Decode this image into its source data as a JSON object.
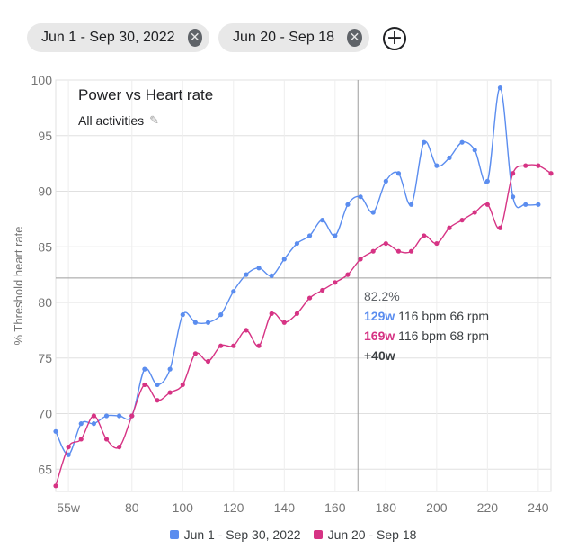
{
  "filters": {
    "chips": [
      {
        "label": "Jun 1 - Sep 30, 2022"
      },
      {
        "label": "Jun 20 - Sep 18"
      }
    ],
    "close_glyph": "✕",
    "add_glyph": "+"
  },
  "chart_header": {
    "title": "Power vs Heart rate",
    "subtitle": "All activities",
    "edit_icon": "pencil-icon"
  },
  "tooltip": {
    "percent": "82.2%",
    "rows": [
      {
        "watts": "129w",
        "details": "116 bpm  66 rpm",
        "color": "#5b8def"
      },
      {
        "watts": "169w",
        "details": "116 bpm  68 rpm",
        "color": "#d63384"
      }
    ],
    "difference": "+40w"
  },
  "chart_data": {
    "type": "line",
    "ylabel": "% Threshold heart rate",
    "xlabel": "",
    "xlim": [
      50,
      245
    ],
    "ylim": [
      63,
      100
    ],
    "x_ticks": [
      {
        "value": 55,
        "label": "55w"
      },
      {
        "value": 80,
        "label": "80"
      },
      {
        "value": 100,
        "label": "100"
      },
      {
        "value": 120,
        "label": "120"
      },
      {
        "value": 140,
        "label": "140"
      },
      {
        "value": 160,
        "label": "160"
      },
      {
        "value": 180,
        "label": "180"
      },
      {
        "value": 200,
        "label": "200"
      },
      {
        "value": 220,
        "label": "220"
      },
      {
        "value": 240,
        "label": "240"
      }
    ],
    "y_ticks": [
      65,
      70,
      75,
      80,
      85,
      90,
      95,
      100
    ],
    "grid": true,
    "legend_position": "bottom",
    "crosshair": {
      "x": 169,
      "y": 82.2
    },
    "series": [
      {
        "name": "Jun 1 - Sep 30, 2022",
        "color": "#5b8def",
        "x": [
          50,
          55,
          60,
          65,
          70,
          75,
          80,
          85,
          90,
          95,
          100,
          105,
          110,
          115,
          120,
          125,
          130,
          135,
          140,
          145,
          150,
          155,
          160,
          165,
          170,
          175,
          180,
          185,
          190,
          195,
          200,
          205,
          210,
          215,
          220,
          225,
          230,
          235,
          240
        ],
        "y": [
          68.4,
          66.3,
          69.1,
          69.1,
          69.8,
          69.8,
          69.8,
          74.0,
          72.6,
          74.0,
          78.9,
          78.2,
          78.2,
          78.9,
          81.0,
          82.5,
          83.1,
          82.4,
          83.9,
          85.3,
          86.0,
          87.4,
          86.0,
          88.8,
          89.5,
          88.1,
          90.9,
          91.6,
          88.8,
          94.4,
          92.3,
          93.0,
          94.4,
          93.7,
          90.9,
          99.3,
          89.5,
          88.8,
          88.8
        ]
      },
      {
        "name": "Jun 20 - Sep 18",
        "color": "#d63384",
        "x": [
          50,
          55,
          60,
          65,
          70,
          75,
          80,
          85,
          90,
          95,
          100,
          105,
          110,
          115,
          120,
          125,
          130,
          135,
          140,
          145,
          150,
          155,
          160,
          165,
          170,
          175,
          180,
          185,
          190,
          195,
          200,
          205,
          210,
          215,
          220,
          225,
          230,
          235,
          240,
          245
        ],
        "y": [
          63.5,
          67.0,
          67.7,
          69.8,
          67.7,
          67.0,
          69.8,
          72.6,
          71.2,
          71.9,
          72.6,
          75.4,
          74.7,
          76.1,
          76.1,
          77.5,
          76.1,
          79.0,
          78.2,
          79.0,
          80.4,
          81.1,
          81.8,
          82.5,
          83.9,
          84.6,
          85.3,
          84.6,
          84.6,
          86.0,
          85.3,
          86.7,
          87.4,
          88.1,
          88.8,
          86.7,
          91.6,
          92.3,
          92.3,
          91.6
        ]
      }
    ]
  }
}
